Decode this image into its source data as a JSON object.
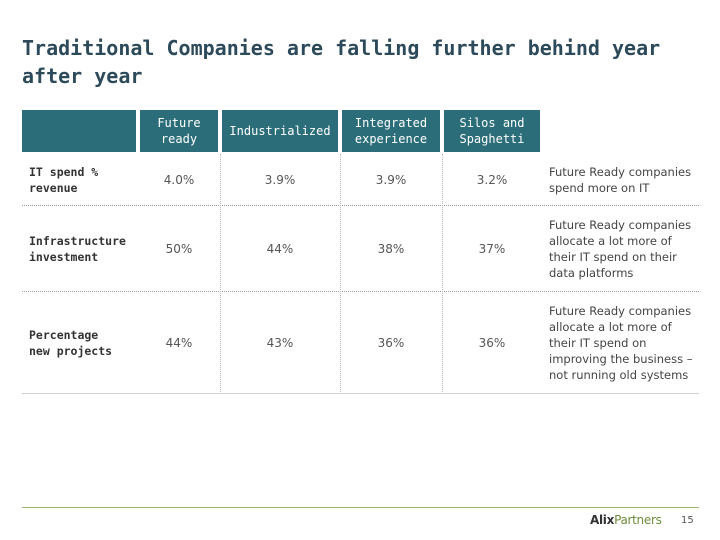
{
  "title": "Traditional Companies are falling further behind year after year",
  "columns": [
    {
      "label": "Future\nready"
    },
    {
      "label": "Industrialized"
    },
    {
      "label": "Integrated\nexperience"
    },
    {
      "label": "Silos and\nSpaghetti"
    }
  ],
  "rows": [
    {
      "label": "IT spend %\nrevenue",
      "values": [
        "4.0%",
        "3.9%",
        "3.9%",
        "3.2%"
      ],
      "note": "Future Ready companies spend more on IT"
    },
    {
      "label": "Infrastructure\ninvestment",
      "values": [
        "50%",
        "44%",
        "38%",
        "37%"
      ],
      "note": "Future Ready companies allocate a lot more of their IT spend on their data platforms"
    },
    {
      "label": "Percentage\nnew projects",
      "values": [
        "44%",
        "43%",
        "36%",
        "36%"
      ],
      "note": "Future Ready companies allocate a lot more of their IT spend on improving the business – not running old systems"
    }
  ],
  "footer": {
    "logo_alix": "Alix",
    "logo_partners": "Partners",
    "page_number": "15"
  },
  "colors": {
    "header_fill": "#2b6e7a",
    "title_text": "#2d4a5b",
    "footer_rule": "#9ab56a",
    "logo_accent": "#6e8c3c"
  }
}
